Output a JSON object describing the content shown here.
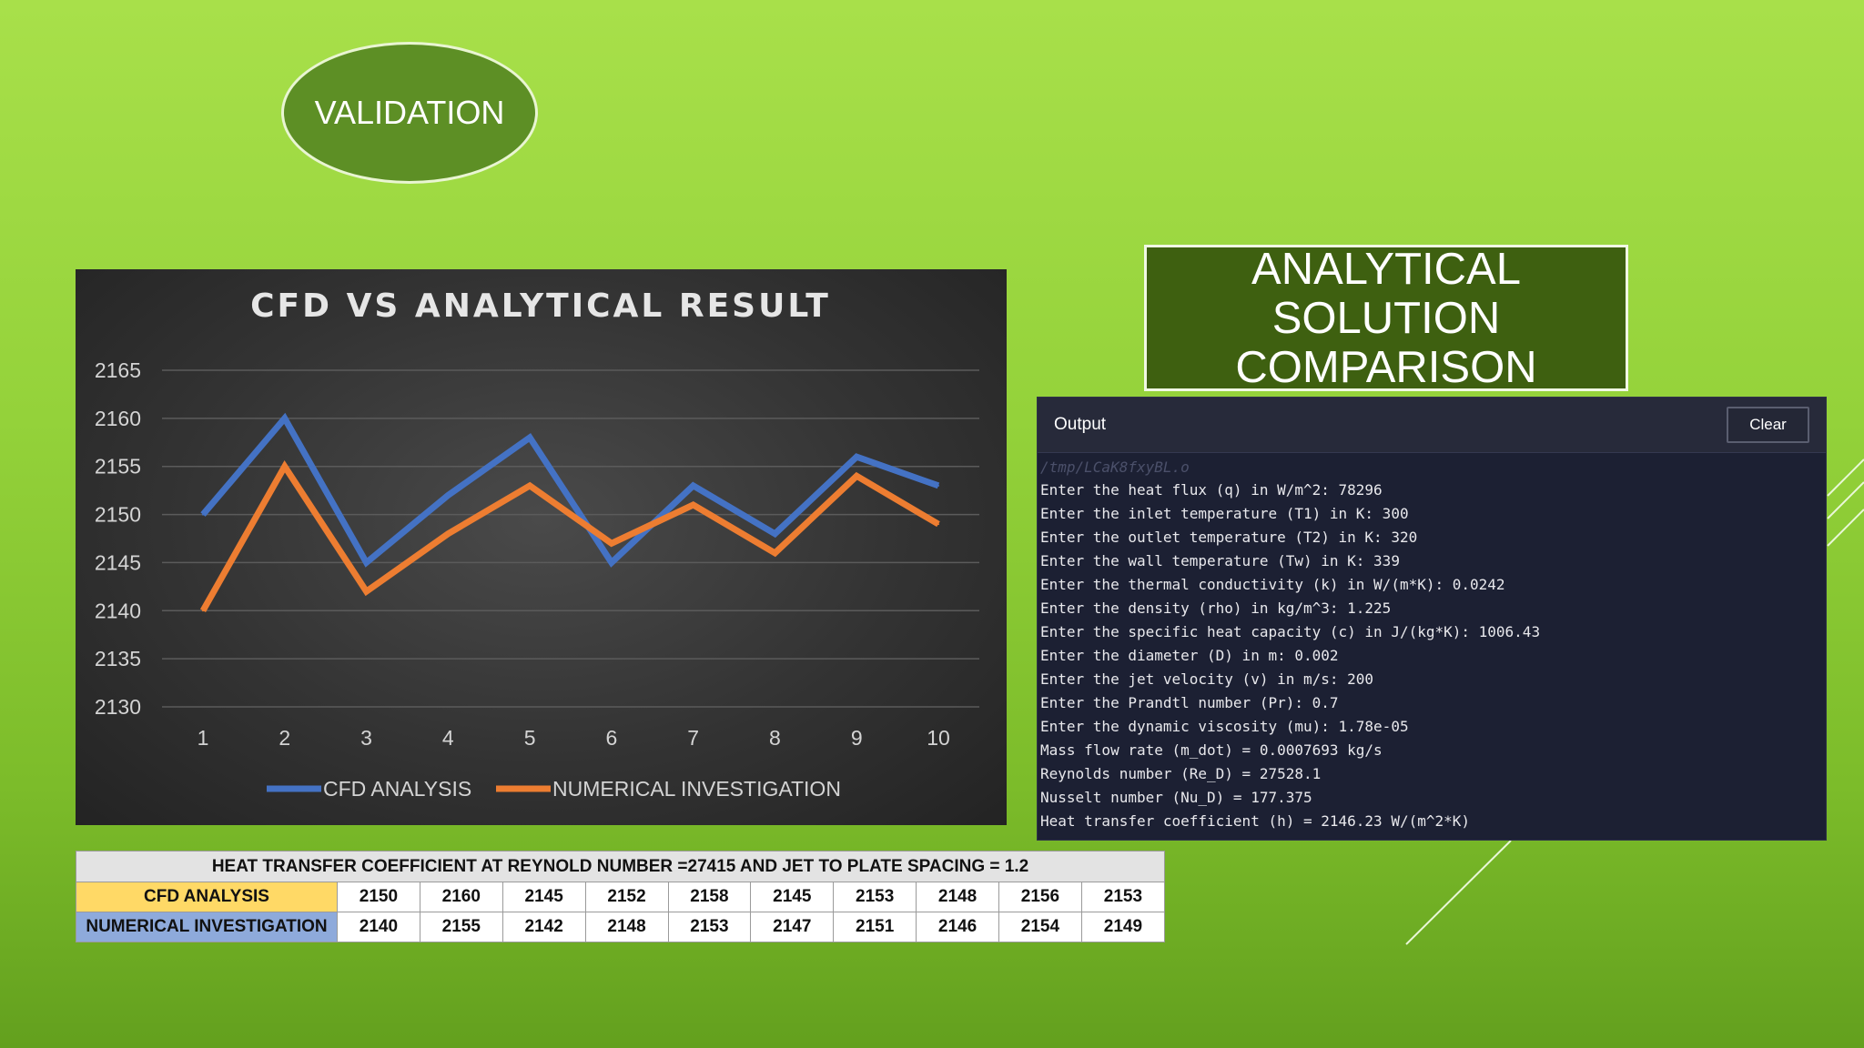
{
  "validation_label": "VALIDATION",
  "analytical_title": {
    "line1": "ANALYTICAL SOLUTION",
    "line2": "COMPARISON"
  },
  "colors": {
    "cfd_series": "#4472c4",
    "numerical_series": "#ed7d31",
    "cfd_row": "#ffd966",
    "numerical_row": "#8eaadb",
    "title_box": "#3e6010",
    "oval": "#5d8f25"
  },
  "chart_data": {
    "type": "line",
    "title": "CFD VS ANALYTICAL RESULT",
    "xlabel": "",
    "ylabel": "",
    "x": [
      1,
      2,
      3,
      4,
      5,
      6,
      7,
      8,
      9,
      10
    ],
    "ylim": [
      2130,
      2165
    ],
    "yticks": [
      2130,
      2135,
      2140,
      2145,
      2150,
      2155,
      2160,
      2165
    ],
    "grid": true,
    "legend_position": "bottom",
    "series": [
      {
        "name": "CFD ANALYSIS",
        "values": [
          2150,
          2160,
          2145,
          2152,
          2158,
          2145,
          2153,
          2148,
          2156,
          2153
        ]
      },
      {
        "name": "NUMERICAL INVESTIGATION",
        "values": [
          2140,
          2155,
          2142,
          2148,
          2153,
          2147,
          2151,
          2146,
          2154,
          2149
        ]
      }
    ]
  },
  "console": {
    "title": "Output",
    "clear_label": "Clear",
    "path": "/tmp/LCaK8fxyBL.o",
    "lines": [
      "Enter the heat flux (q) in W/m^2: 78296",
      "Enter the inlet temperature (T1) in K: 300",
      "Enter the outlet temperature (T2) in K: 320",
      "Enter the wall temperature (Tw) in K: 339",
      "Enter the thermal conductivity (k) in W/(m*K): 0.0242",
      "Enter the density (rho) in kg/m^3: 1.225",
      "Enter the specific heat capacity (c) in J/(kg*K): 1006.43",
      "Enter the diameter (D) in m: 0.002",
      "Enter the jet velocity (v) in m/s: 200",
      "Enter the Prandtl number (Pr): 0.7",
      "Enter the dynamic viscosity (mu): 1.78e-05",
      "Mass flow rate (m_dot) = 0.0007693 kg/s",
      "Reynolds number (Re_D) = 27528.1",
      "Nusselt number (Nu_D) = 177.375",
      "Heat transfer coefficient (h) = 2146.23 W/(m^2*K)"
    ]
  },
  "table": {
    "caption": "HEAT TRANSFER COEFFICIENT AT REYNOLD NUMBER =27415 AND JET TO PLATE SPACING = 1.2",
    "rows": [
      {
        "label": "CFD ANALYSIS",
        "values": [
          2150,
          2160,
          2145,
          2152,
          2158,
          2145,
          2153,
          2148,
          2156,
          2153
        ]
      },
      {
        "label": "NUMERICAL INVESTIGATION",
        "values": [
          2140,
          2155,
          2142,
          2148,
          2153,
          2147,
          2151,
          2146,
          2154,
          2149
        ]
      }
    ]
  }
}
